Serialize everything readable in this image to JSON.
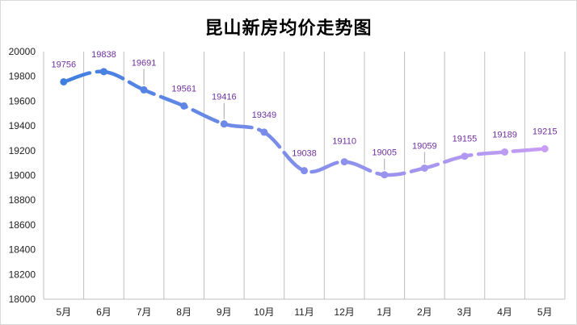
{
  "chart_data": {
    "type": "line",
    "title": "昆山新房均价走势图",
    "categories": [
      "5月",
      "6月",
      "7月",
      "8月",
      "9月",
      "10月",
      "11月",
      "12月",
      "1月",
      "2月",
      "3月",
      "4月",
      "5月"
    ],
    "series": [
      {
        "values": [
          19756,
          19838,
          19691,
          19561,
          19416,
          19349,
          19038,
          19110,
          19005,
          19059,
          19155,
          19189,
          19215
        ]
      }
    ],
    "ylim": [
      18000,
      20000
    ],
    "yticks": [
      18000,
      18200,
      18400,
      18600,
      18800,
      19000,
      19200,
      19400,
      19600,
      19800,
      20000
    ],
    "grid": "vertical",
    "line_style": "dashed, smooth",
    "colors": {
      "line_start": "#3f7fe0",
      "line_end": "#c79df5",
      "label": "#7030a0",
      "grid": "#bfbfbf"
    }
  }
}
